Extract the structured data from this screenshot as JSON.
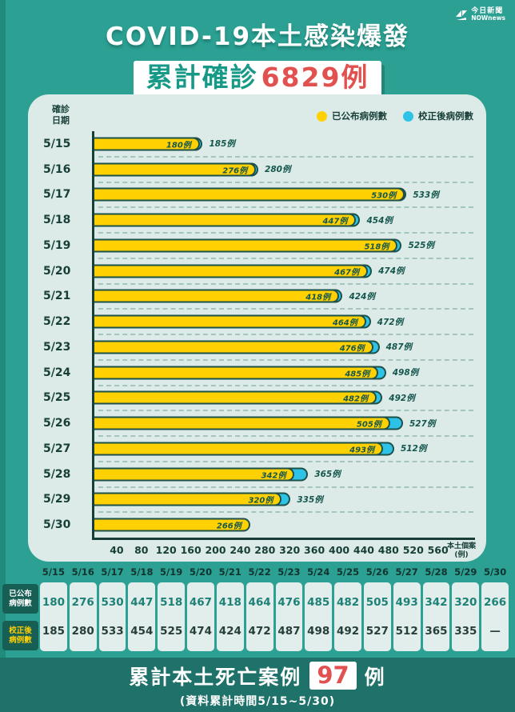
{
  "colors": {
    "background": "#2ba093",
    "panel": "#dcebe8",
    "announced_yellow": "#ffd103",
    "corrected_cyan": "#2ec3e6",
    "accent_red": "#e0514f",
    "dark_teal_text": "#173f38",
    "footer_band": "#1f7269"
  },
  "logo": {
    "line1": "今日新聞",
    "line2": "NOWnews"
  },
  "header": {
    "title": "COVID-19本土感染爆發",
    "subtitle_label": "累計確診",
    "subtitle_number": "6829",
    "subtitle_suffix": "例"
  },
  "chart_data": {
    "type": "bar",
    "orientation": "horizontal",
    "title": "COVID-19本土感染爆發",
    "y_axis_label": "確診日期",
    "x_axis_label": "本土個案",
    "x_axis_unit": "(例)",
    "unit": "例",
    "xlim": [
      0,
      560
    ],
    "x_ticks": [
      40,
      80,
      120,
      160,
      200,
      240,
      280,
      320,
      360,
      400,
      440,
      480,
      520,
      560
    ],
    "grid": "dashed row separators",
    "legend_position": "top-right",
    "categories": [
      "5/15",
      "5/16",
      "5/17",
      "5/18",
      "5/19",
      "5/20",
      "5/21",
      "5/22",
      "5/23",
      "5/24",
      "5/25",
      "5/26",
      "5/27",
      "5/28",
      "5/29",
      "5/30"
    ],
    "series": [
      {
        "name": "已公布病例數",
        "color": "#ffd103",
        "values": [
          180,
          276,
          530,
          447,
          518,
          467,
          418,
          464,
          476,
          485,
          482,
          505,
          493,
          342,
          320,
          266
        ]
      },
      {
        "name": "校正後病例數",
        "color": "#2ec3e6",
        "values": [
          185,
          280,
          533,
          454,
          525,
          474,
          424,
          472,
          487,
          498,
          492,
          527,
          512,
          365,
          335,
          null
        ]
      }
    ]
  },
  "table": {
    "dates": [
      "5/15",
      "5/16",
      "5/17",
      "5/18",
      "5/19",
      "5/20",
      "5/21",
      "5/22",
      "5/23",
      "5/24",
      "5/25",
      "5/26",
      "5/27",
      "5/28",
      "5/29",
      "5/30"
    ],
    "rows": [
      {
        "label": "已公布病例數",
        "values": [
          "180",
          "276",
          "530",
          "447",
          "518",
          "467",
          "418",
          "464",
          "476",
          "485",
          "482",
          "505",
          "493",
          "342",
          "320",
          "266"
        ]
      },
      {
        "label": "校正後病例數",
        "values": [
          "185",
          "280",
          "533",
          "454",
          "525",
          "474",
          "424",
          "472",
          "487",
          "498",
          "492",
          "527",
          "512",
          "365",
          "335",
          "—"
        ]
      }
    ]
  },
  "footer": {
    "prefix": "累計本土死亡案例",
    "number": "97",
    "suffix": "例",
    "note": "(資料累計時間5/15~5/30)"
  }
}
